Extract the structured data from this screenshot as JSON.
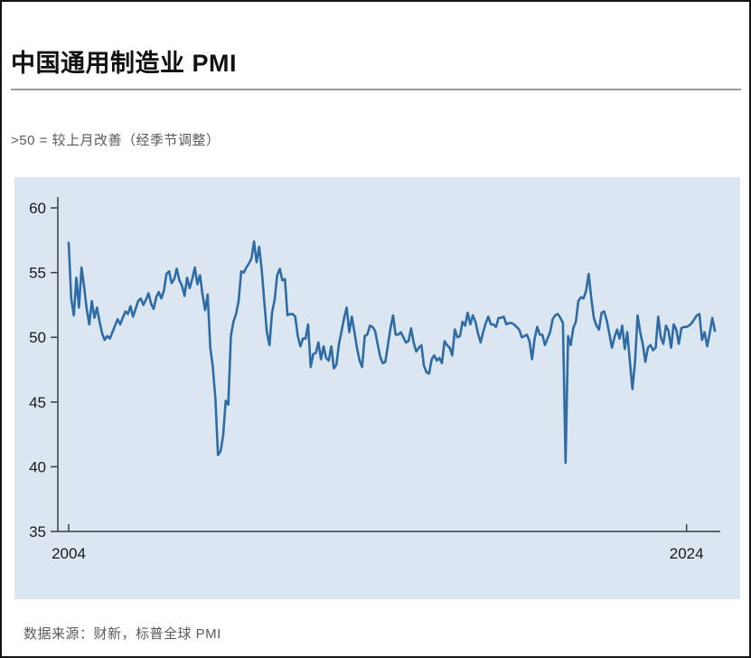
{
  "page": {
    "title": "中国通用制造业 PMI",
    "subtitle": ">50 = 较上月改善（经季节调整）",
    "source": "数据来源：财新，标普全球 PMI"
  },
  "chart_data": {
    "type": "line",
    "title": "中国通用制造业 PMI",
    "subtitle": ">50 = 较上月改善（经季节调整）",
    "source": "数据来源：财新，标普全球 PMI",
    "x_unit": "month",
    "x_range": [
      "2004-01",
      "2024-12"
    ],
    "x_tick_labels": [
      {
        "label": "2004",
        "month_index": 0
      },
      {
        "label": "2024",
        "month_index": 240
      }
    ],
    "ylim": [
      35,
      60
    ],
    "yticks": [
      60,
      55,
      50,
      45,
      40,
      35
    ],
    "grid": false,
    "legend": "none",
    "colors": {
      "line": "#2e6ca6",
      "plot_background": "#dce6f1",
      "axis": "#3d3d3d"
    },
    "series": [
      {
        "name": "中国通用制造业 PMI",
        "values": [
          57.3,
          53.0,
          51.7,
          54.6,
          52.3,
          55.4,
          53.9,
          52.2,
          51.0,
          52.8,
          51.5,
          52.3,
          51.2,
          50.3,
          49.8,
          50.1,
          49.9,
          50.4,
          50.9,
          51.4,
          51.0,
          51.5,
          52.0,
          51.8,
          52.4,
          51.6,
          52.2,
          52.8,
          53.0,
          52.5,
          52.9,
          53.4,
          52.6,
          52.2,
          53.1,
          53.5,
          53.0,
          53.6,
          54.9,
          55.1,
          54.2,
          54.5,
          55.3,
          54.4,
          54.0,
          53.2,
          54.6,
          53.8,
          54.5,
          55.4,
          54.1,
          54.8,
          53.3,
          52.1,
          53.3,
          49.2,
          47.7,
          45.2,
          40.9,
          41.2,
          42.4,
          45.1,
          44.8,
          50.1,
          51.2,
          51.8,
          52.8,
          55.1,
          55.0,
          55.4,
          55.7,
          56.1,
          57.4,
          55.8,
          57.0,
          55.2,
          52.7,
          50.4,
          49.4,
          51.9,
          52.9,
          54.8,
          55.3,
          54.4,
          54.5,
          51.7,
          51.8,
          51.8,
          51.6,
          50.1,
          49.3,
          49.9,
          49.9,
          51.0,
          47.7,
          48.7,
          48.8,
          49.6,
          48.3,
          49.3,
          48.4,
          48.2,
          49.3,
          47.6,
          47.9,
          49.5,
          50.5,
          51.5,
          52.3,
          50.4,
          51.6,
          50.4,
          49.2,
          48.2,
          47.7,
          50.1,
          50.2,
          50.9,
          50.8,
          50.5,
          49.5,
          48.5,
          48.0,
          48.1,
          49.4,
          50.7,
          51.7,
          50.2,
          50.2,
          50.4,
          50.0,
          49.6,
          49.7,
          50.7,
          49.6,
          48.9,
          49.2,
          49.4,
          47.8,
          47.3,
          47.2,
          48.3,
          48.6,
          48.2,
          48.4,
          48.0,
          49.7,
          49.4,
          49.2,
          48.6,
          50.6,
          50.0,
          50.1,
          51.2,
          50.9,
          51.9,
          51.0,
          51.7,
          51.2,
          50.3,
          49.6,
          50.4,
          51.1,
          51.6,
          51.0,
          51.0,
          50.8,
          51.5,
          51.5,
          51.6,
          51.0,
          51.1,
          51.1,
          51.0,
          50.8,
          50.6,
          50.0,
          50.1,
          50.2,
          49.7,
          48.3,
          49.9,
          50.8,
          50.2,
          50.2,
          49.4,
          49.9,
          50.4,
          51.4,
          51.7,
          51.8,
          51.5,
          51.1,
          40.3,
          50.1,
          49.4,
          50.7,
          51.2,
          52.8,
          53.1,
          53.0,
          53.6,
          54.9,
          53.0,
          51.5,
          50.9,
          50.6,
          51.9,
          52.0,
          51.3,
          50.3,
          49.2,
          50.0,
          50.6,
          49.9,
          50.9,
          49.1,
          50.4,
          48.1,
          46.0,
          48.1,
          51.7,
          50.4,
          49.5,
          48.1,
          49.2,
          49.4,
          49.0,
          49.2,
          51.6,
          50.0,
          49.5,
          50.9,
          50.5,
          49.2,
          51.0,
          50.6,
          49.5,
          50.7,
          50.8,
          50.8,
          50.9,
          51.1,
          51.4,
          51.7,
          51.8,
          49.8,
          50.4,
          49.3,
          50.3,
          51.5,
          50.5
        ]
      }
    ]
  }
}
